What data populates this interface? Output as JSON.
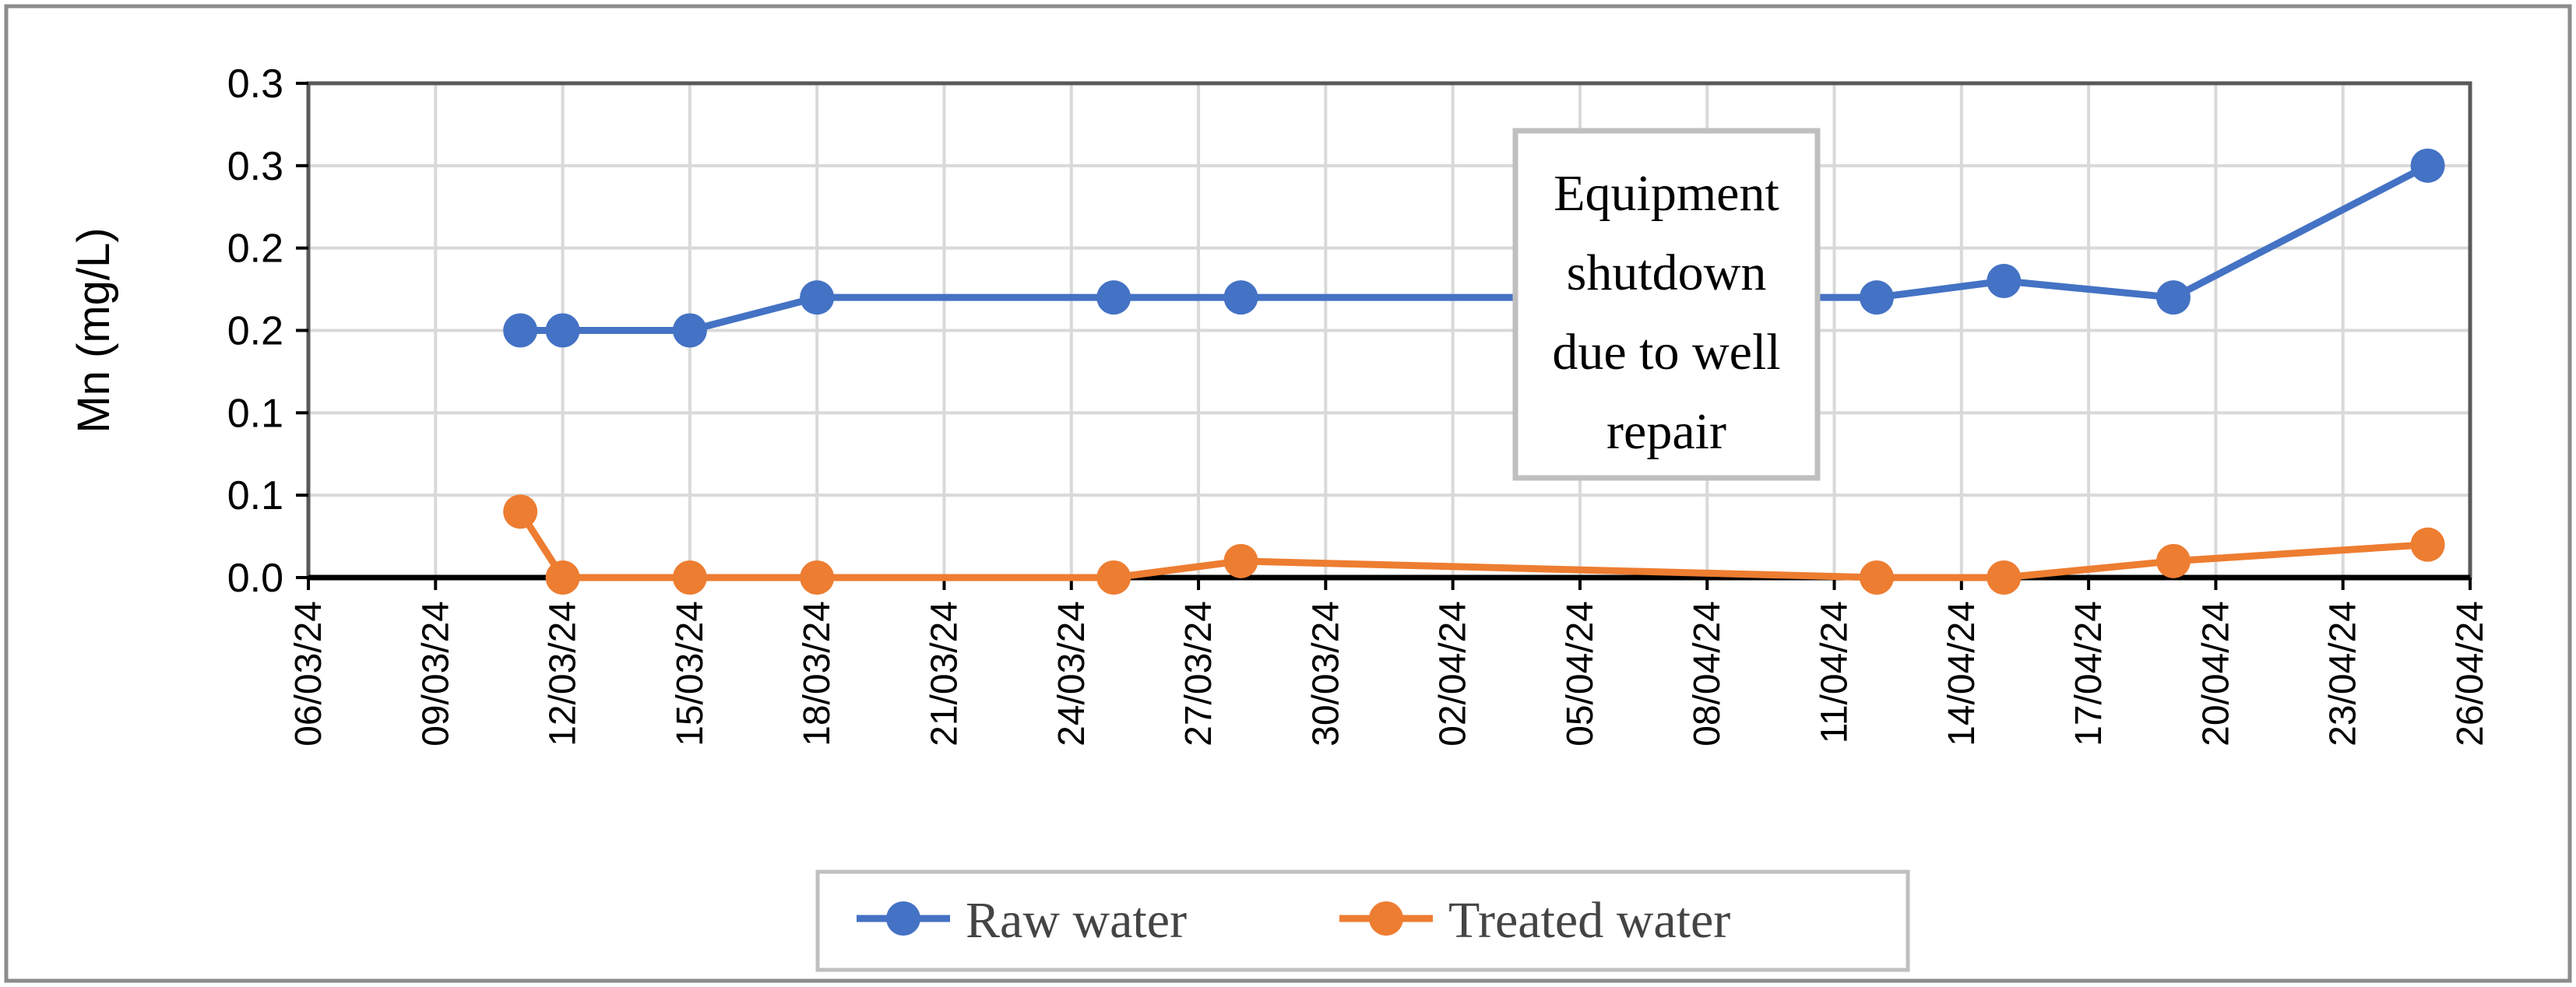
{
  "chart_data": {
    "type": "line",
    "title": "",
    "xlabel": "",
    "ylabel": "Mn (mg/L)",
    "x_ticks": [
      "06/03/24",
      "09/03/24",
      "12/03/24",
      "15/03/24",
      "18/03/24",
      "21/03/24",
      "24/03/24",
      "27/03/24",
      "30/03/24",
      "02/04/24",
      "05/04/24",
      "08/04/24",
      "11/04/24",
      "14/04/24",
      "17/04/24",
      "20/04/24",
      "23/04/24",
      "26/04/24"
    ],
    "y_ticks": [
      {
        "value": 0.0,
        "label": "0.0"
      },
      {
        "value": 0.05,
        "label": "0.1"
      },
      {
        "value": 0.1,
        "label": "0.1"
      },
      {
        "value": 0.15,
        "label": "0.2"
      },
      {
        "value": 0.2,
        "label": "0.2"
      },
      {
        "value": 0.25,
        "label": "0.3"
      },
      {
        "value": 0.3,
        "label": "0.3"
      }
    ],
    "xlim": [
      "2024-03-06",
      "2024-04-26"
    ],
    "ylim": [
      0,
      0.3
    ],
    "grid": true,
    "legend_position": "bottom",
    "series": [
      {
        "name": "Raw water",
        "color": "#4472C4",
        "points": [
          {
            "x": "2024-03-11",
            "y": 0.15
          },
          {
            "x": "2024-03-12",
            "y": 0.15
          },
          {
            "x": "2024-03-15",
            "y": 0.15
          },
          {
            "x": "2024-03-18",
            "y": 0.17
          },
          {
            "x": "2024-03-25",
            "y": 0.17
          },
          {
            "x": "2024-03-28",
            "y": 0.17
          },
          {
            "x": "2024-04-12",
            "y": 0.17
          },
          {
            "x": "2024-04-15",
            "y": 0.18
          },
          {
            "x": "2024-04-19",
            "y": 0.17
          },
          {
            "x": "2024-04-25",
            "y": 0.25
          }
        ]
      },
      {
        "name": "Treated water",
        "color": "#ED7D31",
        "points": [
          {
            "x": "2024-03-11",
            "y": 0.04
          },
          {
            "x": "2024-03-12",
            "y": 0.0
          },
          {
            "x": "2024-03-15",
            "y": 0.0
          },
          {
            "x": "2024-03-18",
            "y": 0.0
          },
          {
            "x": "2024-03-25",
            "y": 0.0
          },
          {
            "x": "2024-03-28",
            "y": 0.01
          },
          {
            "x": "2024-04-12",
            "y": 0.0
          },
          {
            "x": "2024-04-15",
            "y": 0.0
          },
          {
            "x": "2024-04-19",
            "y": 0.01
          },
          {
            "x": "2024-04-25",
            "y": 0.02
          }
        ]
      }
    ],
    "annotations": [
      {
        "text": [
          "Equipment",
          "shutdown",
          "due to well",
          "repair"
        ]
      }
    ]
  }
}
